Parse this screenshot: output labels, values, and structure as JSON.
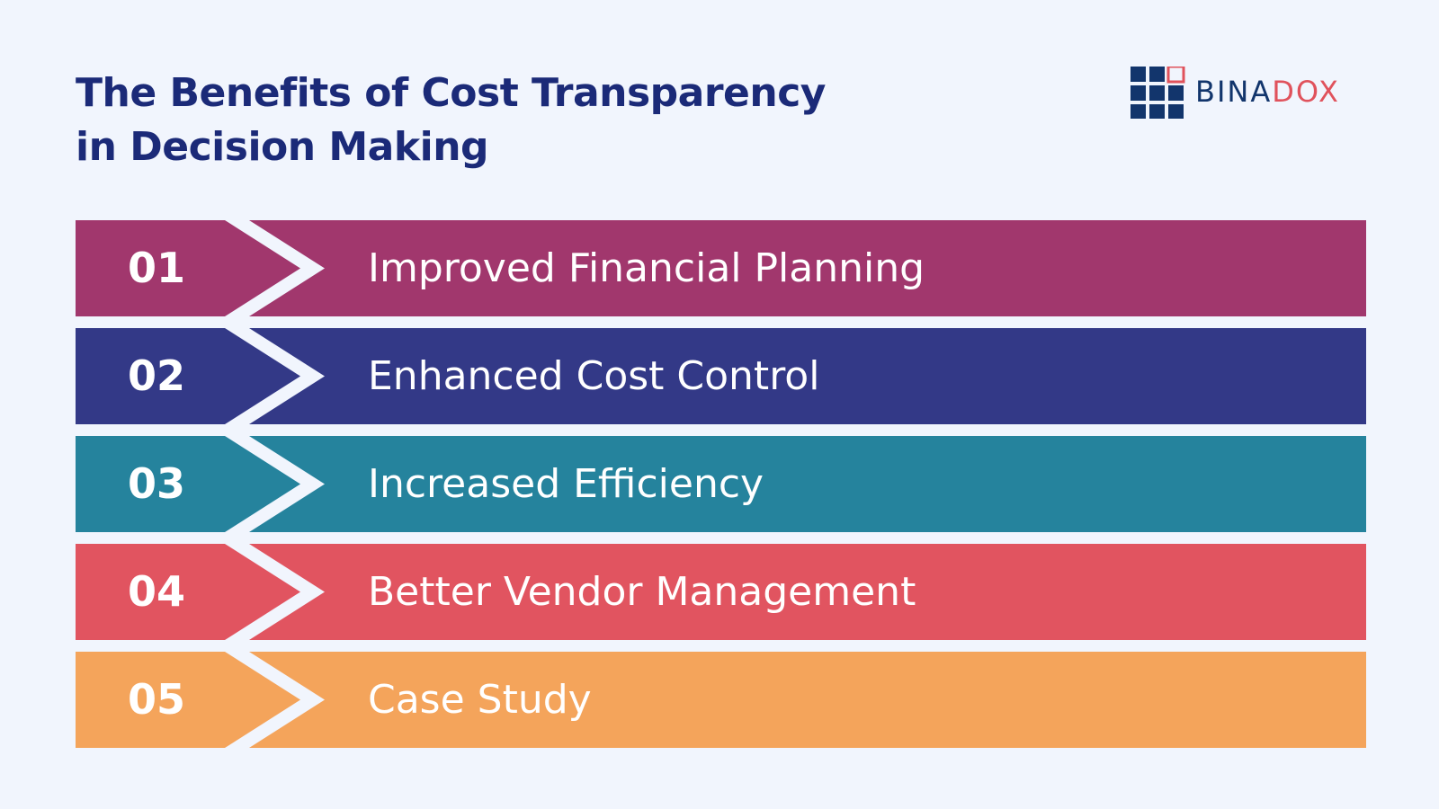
{
  "title": {
    "line1": "The Benefits of Cost Transparency",
    "line2": "in Decision Making"
  },
  "logo": {
    "part1": "BINA",
    "part2": "DOX",
    "icon": "grid-squares-logo-icon",
    "colors": {
      "dark": "#12356c",
      "accent": "#e0525c"
    }
  },
  "steps": [
    {
      "number": "01",
      "label": "Improved Financial Planning",
      "color": "#a1376d"
    },
    {
      "number": "02",
      "label": "Enhanced Cost Control",
      "color": "#333987"
    },
    {
      "number": "03",
      "label": "Increased Efficiency",
      "color": "#25839d"
    },
    {
      "number": "04",
      "label": "Better Vendor Management",
      "color": "#e15460"
    },
    {
      "number": "05",
      "label": "Case Study",
      "color": "#f4a45b"
    }
  ],
  "colors": {
    "background": "#f1f5fd",
    "title": "#1b2a78"
  }
}
